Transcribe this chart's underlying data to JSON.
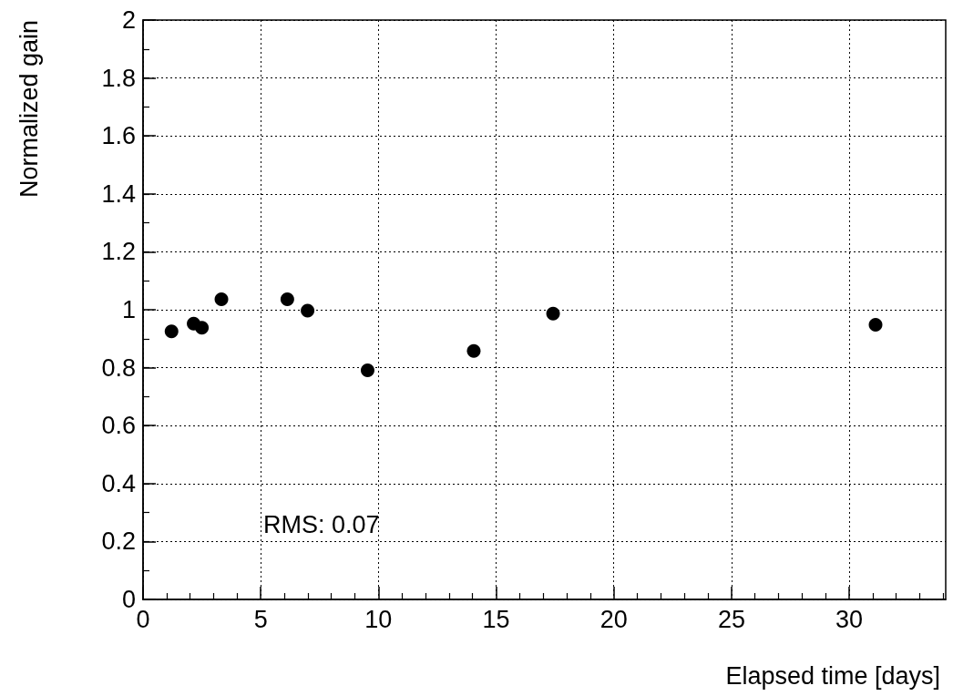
{
  "chart_data": {
    "type": "scatter",
    "xlabel": "Elapsed time [days]",
    "ylabel": "Normalized gain",
    "annotations": [
      "RMS: 0.07"
    ],
    "x": [
      1.21,
      2.15,
      2.5,
      3.33,
      6.13,
      6.99,
      9.54,
      14.05,
      17.42,
      31.12
    ],
    "series": [
      {
        "color": "#000000",
        "values": [
          0.925,
          0.952,
          0.938,
          1.036,
          1.036,
          0.997,
          0.791,
          0.858,
          0.987,
          0.948
        ]
      }
    ],
    "xlim": [
      0,
      34.1
    ],
    "xticks": [
      0,
      5,
      10,
      15,
      20,
      25,
      30
    ],
    "ylim": [
      0,
      2
    ],
    "yticks": [
      0,
      0.2,
      0.4,
      0.6,
      0.8,
      1,
      1.2,
      1.4,
      1.6,
      1.8,
      2
    ],
    "grid": true,
    "marker": "circle"
  }
}
